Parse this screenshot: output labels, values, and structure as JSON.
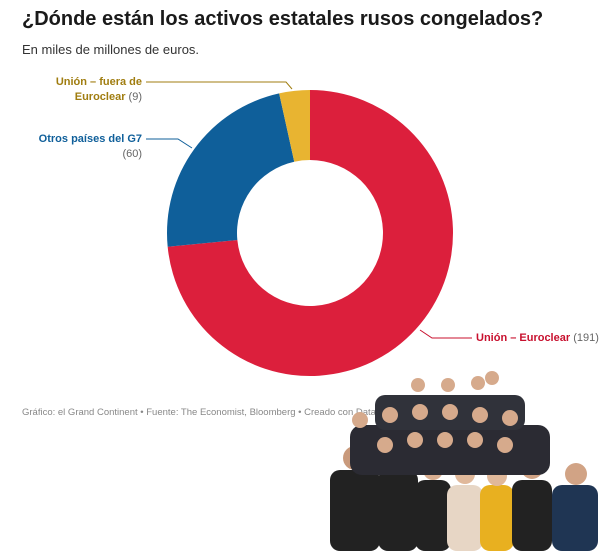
{
  "chart_data": {
    "type": "donut",
    "title": "¿Dónde están los activos estatales rusos congelados?",
    "subtitle": "En miles de millones de euros.",
    "categories": [
      "Unión – Euroclear",
      "Otros países del G7",
      "Unión – fuera de Euroclear"
    ],
    "values": [
      191,
      60,
      9
    ],
    "value_labels": [
      "(191)",
      "(60)",
      "(9)"
    ],
    "colors": [
      "#dc1f3c",
      "#0f5f9a",
      "#e8b431"
    ],
    "label_colors": [
      "#c8102e",
      "#0f5f9a",
      "#a07d10"
    ],
    "source": "Gráfico: el Grand Continent • Fuente: The Economist, Bloomberg • Creado con Datawrapper"
  }
}
